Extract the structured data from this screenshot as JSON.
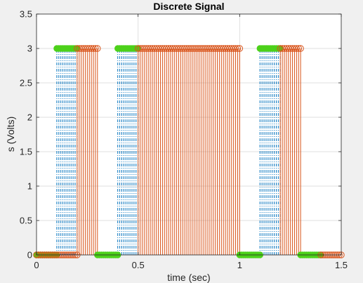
{
  "chart_data": {
    "type": "stem",
    "title": "Discrete Signal",
    "xlabel": "time (sec)",
    "ylabel": "s (Volts)",
    "xlim": [
      0,
      1.5
    ],
    "ylim": [
      0,
      3.5
    ],
    "x_ticks": [
      "0",
      "0.5",
      "1",
      "1.5"
    ],
    "y_ticks": [
      "0",
      "0.5",
      "1",
      "1.5",
      "2",
      "2.5",
      "3",
      "3.5"
    ],
    "grid": true,
    "legend": "none",
    "series": [
      {
        "style": "dash-dot stems, filled circle markers",
        "color": "#0072bd",
        "marker_color": "#4dd11a",
        "segments": [
          {
            "x_start": 0.0,
            "x_end": 0.1,
            "step": 0.01,
            "value": 0
          },
          {
            "x_start": 0.1,
            "x_end": 0.2,
            "step": 0.01,
            "value": 3
          },
          {
            "x_start": 0.3,
            "x_end": 0.4,
            "step": 0.01,
            "value": 0
          },
          {
            "x_start": 0.4,
            "x_end": 0.5,
            "step": 0.01,
            "value": 3
          },
          {
            "x_start": 1.0,
            "x_end": 1.1,
            "step": 0.01,
            "value": 0
          },
          {
            "x_start": 1.1,
            "x_end": 1.2,
            "step": 0.01,
            "value": 3
          },
          {
            "x_start": 1.3,
            "x_end": 1.4,
            "step": 0.01,
            "value": 0
          }
        ]
      },
      {
        "style": "solid stems, open circle markers",
        "color": "#d95319",
        "segments": [
          {
            "x_start": 0.0,
            "x_end": 0.2,
            "step": 0.01,
            "value": 0
          },
          {
            "x_start": 0.2,
            "x_end": 0.3,
            "step": 0.01,
            "value": 3
          },
          {
            "x_start": 0.5,
            "x_end": 1.0,
            "step": 0.01,
            "value": 3
          },
          {
            "x_start": 1.2,
            "x_end": 1.3,
            "step": 0.01,
            "value": 3
          },
          {
            "x_start": 1.4,
            "x_end": 1.5,
            "step": 0.01,
            "value": 0
          }
        ]
      }
    ]
  }
}
